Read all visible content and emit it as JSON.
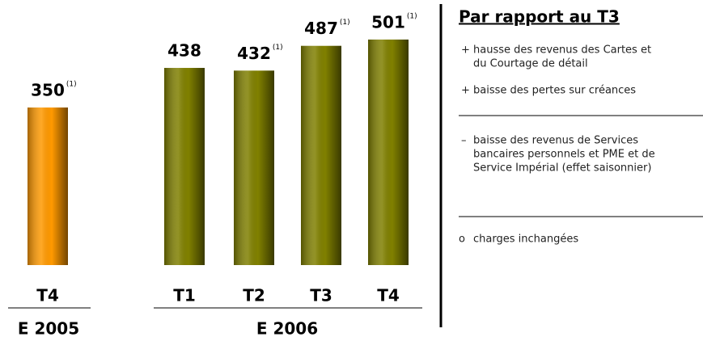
{
  "chart_data": {
    "type": "bar",
    "categories": [
      "T4",
      "T1",
      "T2",
      "T3",
      "T4"
    ],
    "values": [
      350,
      438,
      432,
      487,
      501
    ],
    "footnote_marks": [
      "(1)",
      null,
      "(1)",
      "(1)",
      "(1)"
    ],
    "colors": [
      "#ff9900",
      "#808000",
      "#808000",
      "#808000",
      "#808000"
    ],
    "groups": [
      "E 2005",
      "E 2006"
    ]
  },
  "panel": {
    "title": "Par rapport au T3",
    "items": [
      {
        "bullet": "+",
        "lines": [
          "hausse des revenus des Cartes et",
          "du Courtage de détail"
        ]
      },
      {
        "bullet": "+",
        "lines": [
          "baisse des pertes sur créances"
        ]
      },
      {
        "bullet": "–",
        "lines": [
          "baisse des revenus de Services",
          "bancaires personnels et PME et de",
          "Service Impérial (effet saisonnier)"
        ]
      },
      {
        "bullet": "o",
        "lines": [
          "charges inchangées"
        ]
      }
    ]
  }
}
